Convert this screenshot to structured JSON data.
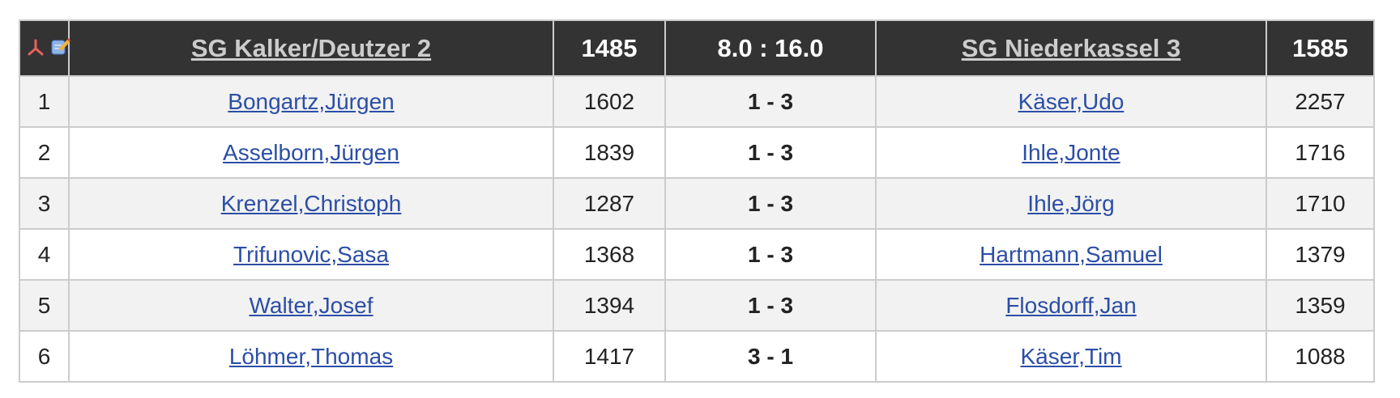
{
  "header": {
    "icons": [
      "pdf-icon",
      "edit-icon"
    ],
    "home_team": "SG Kalker/Deutzer 2",
    "home_avg": "1485",
    "score": "8.0 : 16.0",
    "away_team": "SG Niederkassel 3",
    "away_avg": "1585"
  },
  "colors": {
    "header_bg": "#333333",
    "link": "#2c4ea6",
    "row_alt": "#f2f2f2"
  },
  "rows": [
    {
      "board": "1",
      "home": "Bongartz,Jürgen",
      "home_rating": "1602",
      "result": "1 - 3",
      "away": "Käser,Udo",
      "away_rating": "2257"
    },
    {
      "board": "2",
      "home": "Asselborn,Jürgen",
      "home_rating": "1839",
      "result": "1 - 3",
      "away": "Ihle,Jonte",
      "away_rating": "1716"
    },
    {
      "board": "3",
      "home": "Krenzel,Christoph",
      "home_rating": "1287",
      "result": "1 - 3",
      "away": "Ihle,Jörg",
      "away_rating": "1710"
    },
    {
      "board": "4",
      "home": "Trifunovic,Sasa",
      "home_rating": "1368",
      "result": "1 - 3",
      "away": "Hartmann,Samuel",
      "away_rating": "1379"
    },
    {
      "board": "5",
      "home": "Walter,Josef",
      "home_rating": "1394",
      "result": "1 - 3",
      "away": "Flosdorff,Jan",
      "away_rating": "1359"
    },
    {
      "board": "6",
      "home": "Löhmer,Thomas",
      "home_rating": "1417",
      "result": "3 - 1",
      "away": "Käser,Tim",
      "away_rating": "1088"
    }
  ]
}
